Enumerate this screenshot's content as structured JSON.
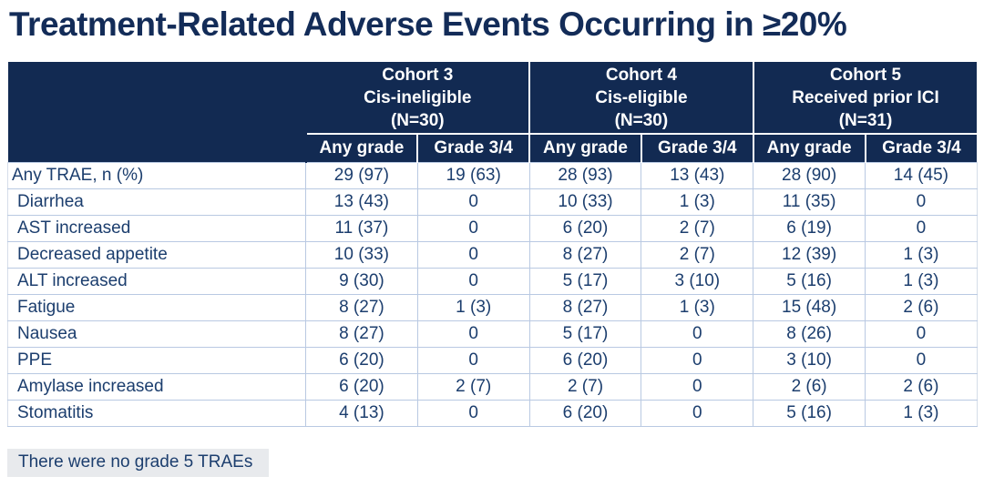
{
  "title": "Treatment-Related Adverse Events Occurring in ≥20%",
  "table": {
    "cohorts": [
      {
        "name": "Cohort 3",
        "description": "Cis-ineligible",
        "n": "(N=30)"
      },
      {
        "name": "Cohort 4",
        "description": "Cis-eligible",
        "n": "(N=30)"
      },
      {
        "name": "Cohort 5",
        "description": "Received prior ICI",
        "n": "(N=31)"
      }
    ],
    "subheaders": [
      "Any grade",
      "Grade 3/4",
      "Any grade",
      "Grade 3/4",
      "Any grade",
      "Grade 3/4"
    ],
    "rows": [
      {
        "label": "Any TRAE, n (%)",
        "values": [
          "29 (97)",
          "19 (63)",
          "28 (93)",
          "13 (43)",
          "28 (90)",
          "14 (45)"
        ]
      },
      {
        "label": "Diarrhea",
        "values": [
          "13 (43)",
          "0",
          "10 (33)",
          "1 (3)",
          "11 (35)",
          "0"
        ]
      },
      {
        "label": "AST increased",
        "values": [
          "11 (37)",
          "0",
          "6 (20)",
          "2 (7)",
          "6 (19)",
          "0"
        ]
      },
      {
        "label": "Decreased appetite",
        "values": [
          "10 (33)",
          "0",
          "8 (27)",
          "2 (7)",
          "12 (39)",
          "1 (3)"
        ]
      },
      {
        "label": "ALT increased",
        "values": [
          "9 (30)",
          "0",
          "5 (17)",
          "3 (10)",
          "5 (16)",
          "1 (3)"
        ]
      },
      {
        "label": "Fatigue",
        "values": [
          "8 (27)",
          "1 (3)",
          "8 (27)",
          "1 (3)",
          "15 (48)",
          "2 (6)"
        ]
      },
      {
        "label": "Nausea",
        "values": [
          "8 (27)",
          "0",
          "5 (17)",
          "0",
          "8 (26)",
          "0"
        ]
      },
      {
        "label": "PPE",
        "values": [
          "6 (20)",
          "0",
          "6 (20)",
          "0",
          "3 (10)",
          "0"
        ]
      },
      {
        "label": "Amylase increased",
        "values": [
          "6 (20)",
          "2 (7)",
          "2 (7)",
          "0",
          "2 (6)",
          "2 (6)"
        ]
      },
      {
        "label": "Stomatitis",
        "values": [
          "4 (13)",
          "0",
          "6 (20)",
          "0",
          "5 (16)",
          "1 (3)"
        ]
      }
    ]
  },
  "footnote": "There were no grade 5 TRAEs",
  "colors": {
    "header_bg": "#122a52",
    "header_text": "#ffffff",
    "title_text": "#132c58",
    "body_text": "#1c3e6e",
    "grid_line": "#b9c9e2",
    "note_bg": "#e8eaed"
  }
}
